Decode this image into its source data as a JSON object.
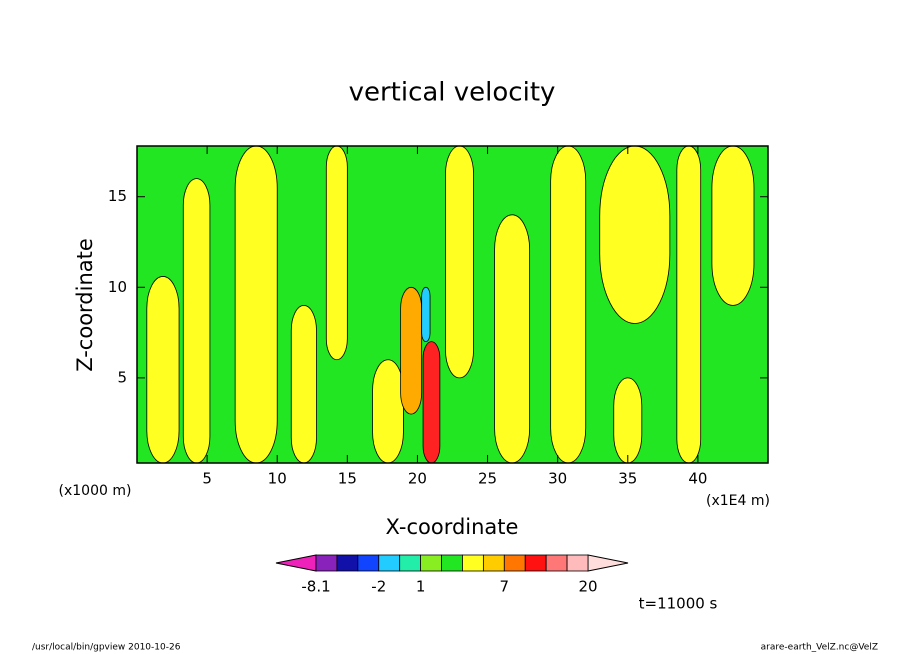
{
  "chart_data": {
    "type": "contour",
    "title": "vertical velocity",
    "x_label": "X-coordinate",
    "y_label": "Z-coordinate",
    "x_unit": "(x1E4 m)",
    "y_unit": "(x1000 m)",
    "time_label": "t=11000 s",
    "footer_left": "/usr/local/bin/gpview  2010-10-26",
    "footer_right": "arare-earth_VelZ.nc@VelZ",
    "xlim": [
      0,
      45
    ],
    "ylim": [
      0.3,
      17.8
    ],
    "xticks": [
      5,
      10,
      15,
      20,
      25,
      30,
      35,
      40
    ],
    "yticks": [
      5,
      10,
      15
    ],
    "background_color": "#22e622",
    "regions": [
      {
        "x0": 0.7,
        "x1": 3,
        "z0": 0.3,
        "z1": 10.6,
        "color": "#ffff22"
      },
      {
        "x0": 3.3,
        "x1": 5.2,
        "z0": 0.3,
        "z1": 16,
        "color": "#ffff22"
      },
      {
        "x0": 7,
        "x1": 10,
        "z0": 0.3,
        "z1": 17.8,
        "color": "#ffff22"
      },
      {
        "x0": 11,
        "x1": 12.8,
        "z0": 0.3,
        "z1": 9,
        "color": "#ffff22"
      },
      {
        "x0": 13.5,
        "x1": 15,
        "z0": 6,
        "z1": 17.8,
        "color": "#ffff22"
      },
      {
        "x0": 16.8,
        "x1": 19,
        "z0": 0.3,
        "z1": 6,
        "color": "#ffff22"
      },
      {
        "x0": 22,
        "x1": 24,
        "z0": 5,
        "z1": 17.8,
        "color": "#ffff22"
      },
      {
        "x0": 25.5,
        "x1": 28,
        "z0": 0.3,
        "z1": 14,
        "color": "#ffff22"
      },
      {
        "x0": 29.5,
        "x1": 32,
        "z0": 0.3,
        "z1": 17.8,
        "color": "#ffff22"
      },
      {
        "x0": 33,
        "x1": 38,
        "z0": 8,
        "z1": 17.8,
        "color": "#ffff22"
      },
      {
        "x0": 34,
        "x1": 36,
        "z0": 0.3,
        "z1": 5,
        "color": "#ffff22"
      },
      {
        "x0": 38.5,
        "x1": 40.2,
        "z0": 0.3,
        "z1": 17.8,
        "color": "#ffff22"
      },
      {
        "x0": 41,
        "x1": 44,
        "z0": 9,
        "z1": 17.8,
        "color": "#ffff22"
      },
      {
        "x0": 18.8,
        "x1": 20.3,
        "z0": 3,
        "z1": 10,
        "color": "#ffaa00"
      },
      {
        "x0": 20.3,
        "x1": 20.9,
        "z0": 7,
        "z1": 10,
        "color": "#22ccff"
      },
      {
        "x0": 20.4,
        "x1": 21.6,
        "z0": 0.3,
        "z1": 7,
        "color": "#ff2222"
      }
    ],
    "colorbar": {
      "colors": [
        "#8822bb",
        "#1111aa",
        "#1144ff",
        "#22ccff",
        "#22eeaa",
        "#88ee22",
        "#22e622",
        "#ffff22",
        "#ffcc00",
        "#ff7700",
        "#ff1111",
        "#ff7777",
        "#ffbbbb"
      ],
      "under_color": "#ee22bb",
      "over_color": "#ffdddd",
      "ticks": [
        {
          "boundary": 0,
          "value": -8.1
        },
        {
          "boundary": 3,
          "value": -2
        },
        {
          "boundary": 5,
          "value": 1
        },
        {
          "boundary": 9,
          "value": 7
        },
        {
          "boundary": 13,
          "value": 20
        }
      ]
    }
  }
}
